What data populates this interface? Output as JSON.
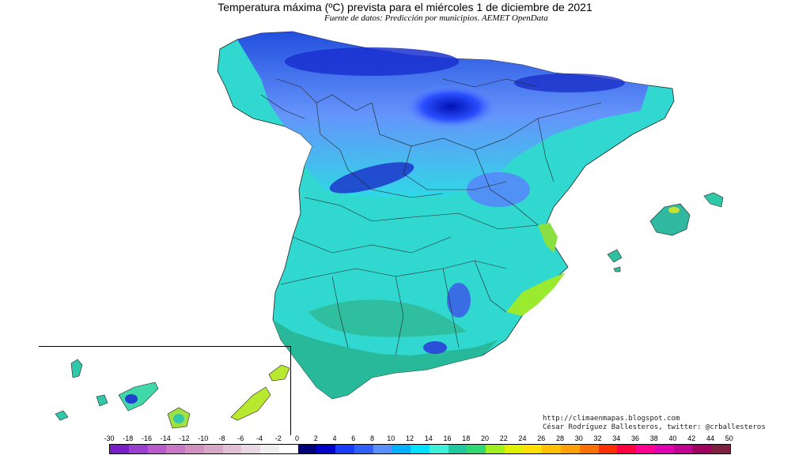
{
  "title": "Temperatura máxima (ºC) prevista para el miércoles 1 de diciembre de 2021",
  "subtitle": "Fuente de datos: Predicción por municipios. AEMET OpenData",
  "credits": {
    "blog": "http://climaenmapas.blogspot.com",
    "author": "César Rodríguez Ballesteros, twitter: @crballesteros"
  },
  "legend": {
    "ticks": [
      "-30",
      "-18",
      "-16",
      "-14",
      "-12",
      "-10",
      "-8",
      "-6",
      "-4",
      "-2",
      "0",
      "2",
      "4",
      "6",
      "8",
      "10",
      "12",
      "14",
      "16",
      "18",
      "20",
      "22",
      "24",
      "26",
      "28",
      "30",
      "32",
      "34",
      "36",
      "38",
      "40",
      "42",
      "44",
      "50"
    ],
    "colors": [
      "#7a1fc8",
      "#9b3fd0",
      "#b85acb",
      "#c878c4",
      "#d190c0",
      "#d8a8c8",
      "#e0c0d4",
      "#e8d8e4",
      "#efefef",
      "#ffffff",
      "#00007a",
      "#0000c8",
      "#1a3cff",
      "#3060ff",
      "#5a90ff",
      "#00b0ff",
      "#00e0ff",
      "#40f0d8",
      "#20c8a0",
      "#2fd870",
      "#a0f020",
      "#e0f000",
      "#ffe000",
      "#ffc000",
      "#ffa000",
      "#ff7000",
      "#ff3000",
      "#ff0040",
      "#ff0090",
      "#e000b0",
      "#c00090",
      "#a00060",
      "#802040"
    ]
  },
  "regions": {
    "peninsula": "peninsula",
    "balearics": "islas-baleares",
    "canaries": "islas-canarias"
  }
}
